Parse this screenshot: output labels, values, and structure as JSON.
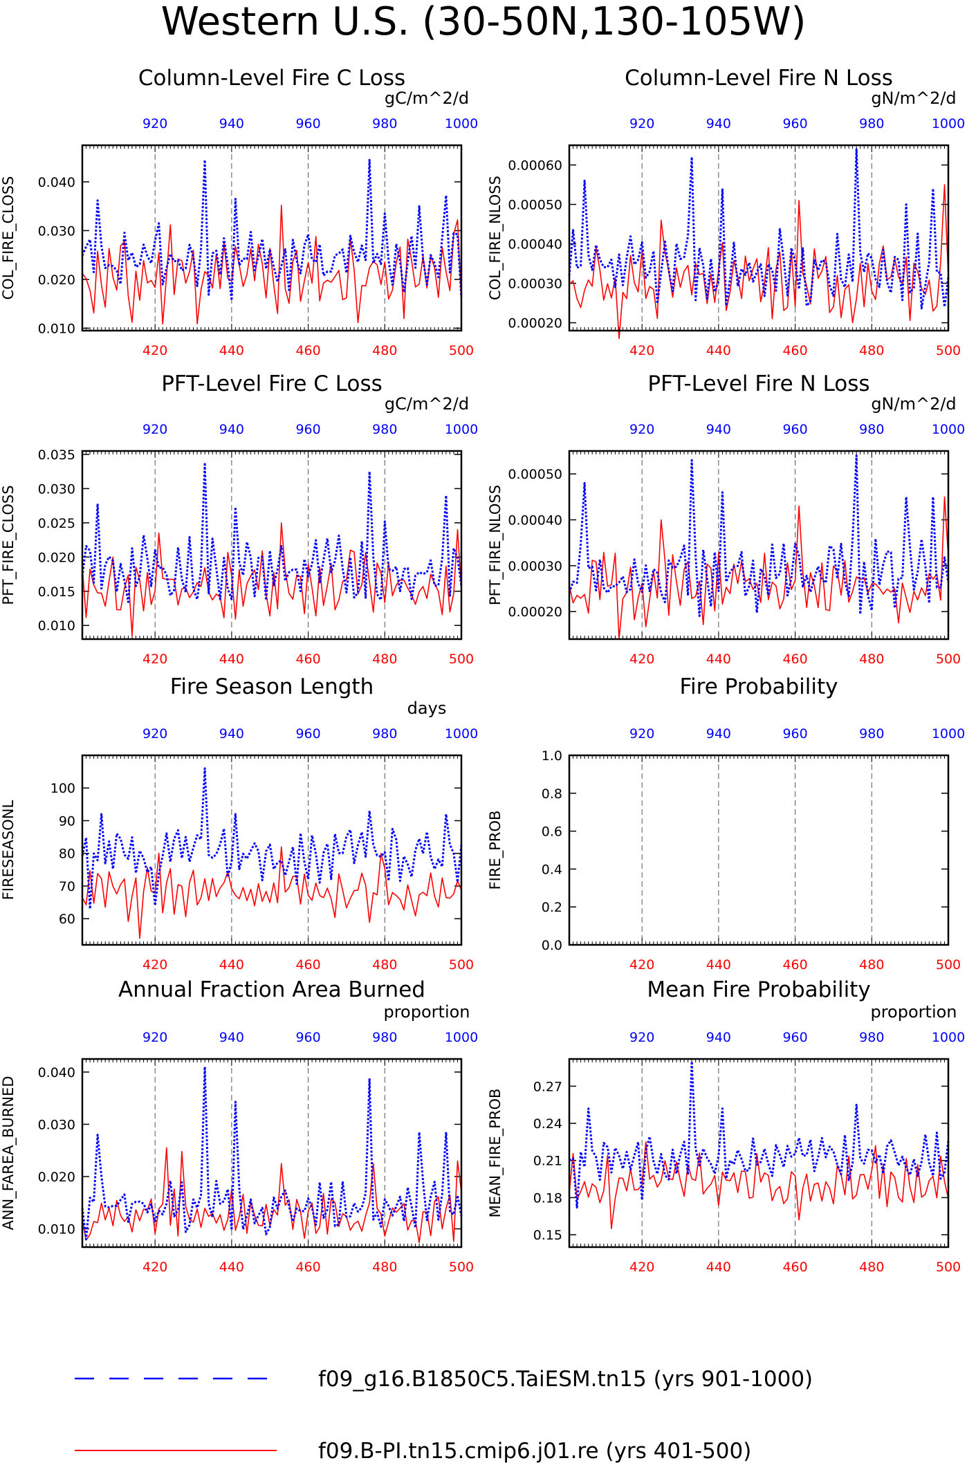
{
  "page": {
    "title": "Western U.S. (30-50N,130-105W)"
  },
  "legend": {
    "items": [
      {
        "label": "f09_g16.B1850C5.TaiESM.tn15 (yrs 901-1000)",
        "color": "#0000ff",
        "style": "dashed"
      },
      {
        "label": "f09.B-PI.tn15.cmip6.j01.re (yrs 401-500)",
        "color": "#ff0000",
        "style": "solid"
      }
    ]
  },
  "chart_data": [
    {
      "type": "line",
      "title": "Column-Level Fire C Loss",
      "ylabel": "COL_FIRE_CLOSS",
      "units": "gC/m^2/d",
      "ylim": [
        0.0095,
        0.0475
      ],
      "yticks": [
        0.01,
        0.02,
        0.03,
        0.04
      ],
      "ytick_labels": [
        "0.010",
        "0.020",
        "0.030",
        "0.040"
      ],
      "xlim_bottom": [
        401,
        500
      ],
      "xticks_bottom": [
        420,
        440,
        460,
        480,
        500
      ],
      "xlim_top": [
        901,
        1000
      ],
      "xticks_top": [
        920,
        940,
        960,
        980,
        1000
      ],
      "series": [
        {
          "name": "f09.B-PI.tn15.cmip6.j01.re (yrs 401-500)",
          "x_axis": "bottom",
          "color": "#ff0000",
          "base": 0.0205,
          "amp": 0.0075,
          "seed": 11,
          "peaks": {
            "13": 0.0112,
            "18": 0.0198,
            "23": 0.0312,
            "32": 0.0216,
            "52": 0.0352,
            "70": 0.0285,
            "98": 0.0322
          }
        },
        {
          "name": "f09_g16.B1850C5.TaiESM.tn15 (yrs 901-1000)",
          "x_axis": "top",
          "color": "#0000ff",
          "base": 0.0235,
          "amp": 0.006,
          "seed": 23,
          "peaks": {
            "4": 0.0362,
            "20": 0.0315,
            "32": 0.0445,
            "40": 0.0365,
            "58": 0.027,
            "75": 0.0445,
            "79": 0.0335,
            "88": 0.035,
            "95": 0.0372
          }
        }
      ]
    },
    {
      "type": "line",
      "title": "Column-Level Fire N Loss",
      "ylabel": "COL_FIRE_NLOSS",
      "units": "gN/m^2/d",
      "ylim": [
        0.00018,
        0.00065
      ],
      "yticks": [
        0.0002,
        0.0003,
        0.0004,
        0.0005,
        0.0006
      ],
      "ytick_labels": [
        "0.00020",
        "0.00030",
        "0.00040",
        "0.00050",
        "0.00060"
      ],
      "xlim_bottom": [
        401,
        500
      ],
      "xticks_bottom": [
        420,
        440,
        460,
        480,
        500
      ],
      "xlim_top": [
        901,
        1000
      ],
      "xticks_top": [
        920,
        940,
        960,
        980,
        1000
      ],
      "series": [
        {
          "name": "f09.B-PI.tn15.cmip6.j01.re (yrs 401-500)",
          "x_axis": "bottom",
          "color": "#ff0000",
          "base": 0.0003,
          "amp": 8e-05,
          "seed": 31,
          "peaks": {
            "13": 0.00016,
            "24": 0.00046,
            "60": 0.00051,
            "98": 0.00055
          }
        },
        {
          "name": "f09_g16.B1850C5.TaiESM.tn15 (yrs 901-1000)",
          "x_axis": "top",
          "color": "#0000ff",
          "base": 0.00033,
          "amp": 8e-05,
          "seed": 37,
          "peaks": {
            "4": 0.00056,
            "32": 0.00062,
            "40": 0.00054,
            "75": 0.00064,
            "88": 0.0005,
            "95": 0.00054
          }
        }
      ]
    },
    {
      "type": "line",
      "title": "PFT-Level Fire C Loss",
      "ylabel": "PFT_FIRE_CLOSS",
      "units": "gC/m^2/d",
      "ylim": [
        0.008,
        0.0355
      ],
      "yticks": [
        0.01,
        0.015,
        0.02,
        0.025,
        0.03,
        0.035
      ],
      "ytick_labels": [
        "0.010",
        "0.015",
        "0.020",
        "0.025",
        "0.030",
        "0.035"
      ],
      "xlim_bottom": [
        401,
        500
      ],
      "xticks_bottom": [
        420,
        440,
        460,
        480,
        500
      ],
      "xlim_top": [
        901,
        1000
      ],
      "xticks_top": [
        920,
        940,
        960,
        980,
        1000
      ],
      "series": [
        {
          "name": "f09.B-PI.tn15.cmip6.j01.re (yrs 401-500)",
          "x_axis": "bottom",
          "color": "#ff0000",
          "base": 0.0155,
          "amp": 0.0045,
          "seed": 41,
          "peaks": {
            "13": 0.0085,
            "20": 0.0235,
            "52": 0.025,
            "70": 0.021,
            "98": 0.024
          }
        },
        {
          "name": "f09_g16.B1850C5.TaiESM.tn15 (yrs 901-1000)",
          "x_axis": "top",
          "color": "#0000ff",
          "base": 0.018,
          "amp": 0.004,
          "seed": 43,
          "peaks": {
            "4": 0.0278,
            "32": 0.0338,
            "40": 0.0273,
            "75": 0.0325,
            "79": 0.0252,
            "95": 0.029
          }
        }
      ]
    },
    {
      "type": "line",
      "title": "PFT-Level Fire N Loss",
      "ylabel": "PFT_FIRE_NLOSS",
      "units": "gN/m^2/d",
      "ylim": [
        0.00014,
        0.00055
      ],
      "yticks": [
        0.0002,
        0.0003,
        0.0004,
        0.0005
      ],
      "ytick_labels": [
        "0.00020",
        "0.00030",
        "0.00040",
        "0.00050"
      ],
      "xlim_bottom": [
        401,
        500
      ],
      "xticks_bottom": [
        420,
        440,
        460,
        480,
        500
      ],
      "xlim_top": [
        901,
        1000
      ],
      "xticks_top": [
        920,
        940,
        960,
        980,
        1000
      ],
      "series": [
        {
          "name": "f09.B-PI.tn15.cmip6.j01.re (yrs 401-500)",
          "x_axis": "bottom",
          "color": "#ff0000",
          "base": 0.00025,
          "amp": 7e-05,
          "seed": 51,
          "peaks": {
            "13": 0.00014,
            "24": 0.0004,
            "60": 0.00043,
            "98": 0.00045
          }
        },
        {
          "name": "f09_g16.B1850C5.TaiESM.tn15 (yrs 901-1000)",
          "x_axis": "top",
          "color": "#0000ff",
          "base": 0.00028,
          "amp": 7e-05,
          "seed": 53,
          "peaks": {
            "4": 0.00048,
            "32": 0.00053,
            "40": 0.00046,
            "75": 0.00054,
            "88": 0.00045,
            "95": 0.00045
          }
        }
      ]
    },
    {
      "type": "line",
      "title": "Fire Season Length",
      "ylabel": "FIRESEASONL",
      "units": "days",
      "ylim": [
        52,
        110
      ],
      "yticks": [
        60,
        70,
        80,
        90,
        100
      ],
      "ytick_labels": [
        "60",
        "70",
        "80",
        "90",
        "100"
      ],
      "xlim_bottom": [
        401,
        500
      ],
      "xticks_bottom": [
        420,
        440,
        460,
        480,
        500
      ],
      "xlim_top": [
        901,
        1000
      ],
      "xticks_top": [
        920,
        940,
        960,
        980,
        1000
      ],
      "series": [
        {
          "name": "f09.B-PI.tn15.cmip6.j01.re (yrs 401-500)",
          "x_axis": "bottom",
          "color": "#ff0000",
          "base": 68,
          "amp": 7,
          "seed": 61,
          "peaks": {
            "15": 54,
            "20": 80,
            "52": 82,
            "78": 80
          }
        },
        {
          "name": "f09_g16.B1850C5.TaiESM.tn15 (yrs 901-1000)",
          "x_axis": "top",
          "color": "#0000ff",
          "base": 80,
          "amp": 7,
          "seed": 63,
          "peaks": {
            "2": 63,
            "5": 92,
            "19": 64,
            "32": 106,
            "40": 92,
            "75": 93,
            "95": 92
          }
        }
      ]
    },
    {
      "type": "line",
      "title": "Fire Probability",
      "ylabel": "FIRE_PROB",
      "units": "",
      "ylim": [
        0.0,
        1.0
      ],
      "yticks": [
        0.0,
        0.2,
        0.4,
        0.6,
        0.8,
        1.0
      ],
      "ytick_labels": [
        "0.0",
        "0.2",
        "0.4",
        "0.6",
        "0.8",
        "1.0"
      ],
      "xlim_bottom": [
        401,
        500
      ],
      "xticks_bottom": [
        420,
        440,
        460,
        480,
        500
      ],
      "xlim_top": [
        901,
        1000
      ],
      "xticks_top": [
        920,
        940,
        960,
        980,
        1000
      ],
      "series": []
    },
    {
      "type": "line",
      "title": "Annual Fraction Area Burned",
      "ylabel": "ANN_FAREA_BURNED",
      "units": "proportion",
      "ylim": [
        0.0065,
        0.0425
      ],
      "yticks": [
        0.01,
        0.02,
        0.03,
        0.04
      ],
      "ytick_labels": [
        "0.010",
        "0.020",
        "0.030",
        "0.040"
      ],
      "xlim_bottom": [
        401,
        500
      ],
      "xticks_bottom": [
        420,
        440,
        460,
        480,
        500
      ],
      "xlim_top": [
        901,
        1000
      ],
      "xticks_top": [
        920,
        940,
        960,
        980,
        1000
      ],
      "series": [
        {
          "name": "f09.B-PI.tn15.cmip6.j01.re (yrs 401-500)",
          "x_axis": "bottom",
          "color": "#ff0000",
          "base": 0.0125,
          "amp": 0.004,
          "seed": 71,
          "peaks": {
            "22": 0.0255,
            "26": 0.0248,
            "52": 0.0225,
            "76": 0.0225,
            "98": 0.023
          }
        },
        {
          "name": "f09_g16.B1850C5.TaiESM.tn15 (yrs 901-1000)",
          "x_axis": "top",
          "color": "#0000ff",
          "base": 0.014,
          "amp": 0.0045,
          "seed": 73,
          "peaks": {
            "1": 0.008,
            "4": 0.028,
            "32": 0.041,
            "40": 0.0343,
            "75": 0.0388,
            "88": 0.0285,
            "95": 0.0285
          }
        }
      ]
    },
    {
      "type": "line",
      "title": "Mean Fire Probability",
      "ylabel": "MEAN_FIRE_PROB",
      "units": "proportion",
      "ylim": [
        0.14,
        0.292
      ],
      "yticks": [
        0.15,
        0.18,
        0.21,
        0.24,
        0.27
      ],
      "ytick_labels": [
        "0.15",
        "0.18",
        "0.21",
        "0.24",
        "0.27"
      ],
      "xlim_bottom": [
        401,
        500
      ],
      "xticks_bottom": [
        420,
        440,
        460,
        480,
        500
      ],
      "xlim_top": [
        901,
        1000
      ],
      "xticks_top": [
        920,
        940,
        960,
        980,
        1000
      ],
      "series": [
        {
          "name": "f09.B-PI.tn15.cmip6.j01.re (yrs 401-500)",
          "x_axis": "bottom",
          "color": "#ff0000",
          "base": 0.192,
          "amp": 0.018,
          "seed": 81,
          "peaks": {
            "11": 0.155,
            "20": 0.225,
            "60": 0.162,
            "80": 0.222
          }
        },
        {
          "name": "f09_g16.B1850C5.TaiESM.tn15 (yrs 901-1000)",
          "x_axis": "top",
          "color": "#0000ff",
          "base": 0.212,
          "amp": 0.016,
          "seed": 83,
          "peaks": {
            "2": 0.172,
            "5": 0.252,
            "19": 0.178,
            "32": 0.29,
            "40": 0.252,
            "75": 0.255
          }
        }
      ]
    }
  ]
}
